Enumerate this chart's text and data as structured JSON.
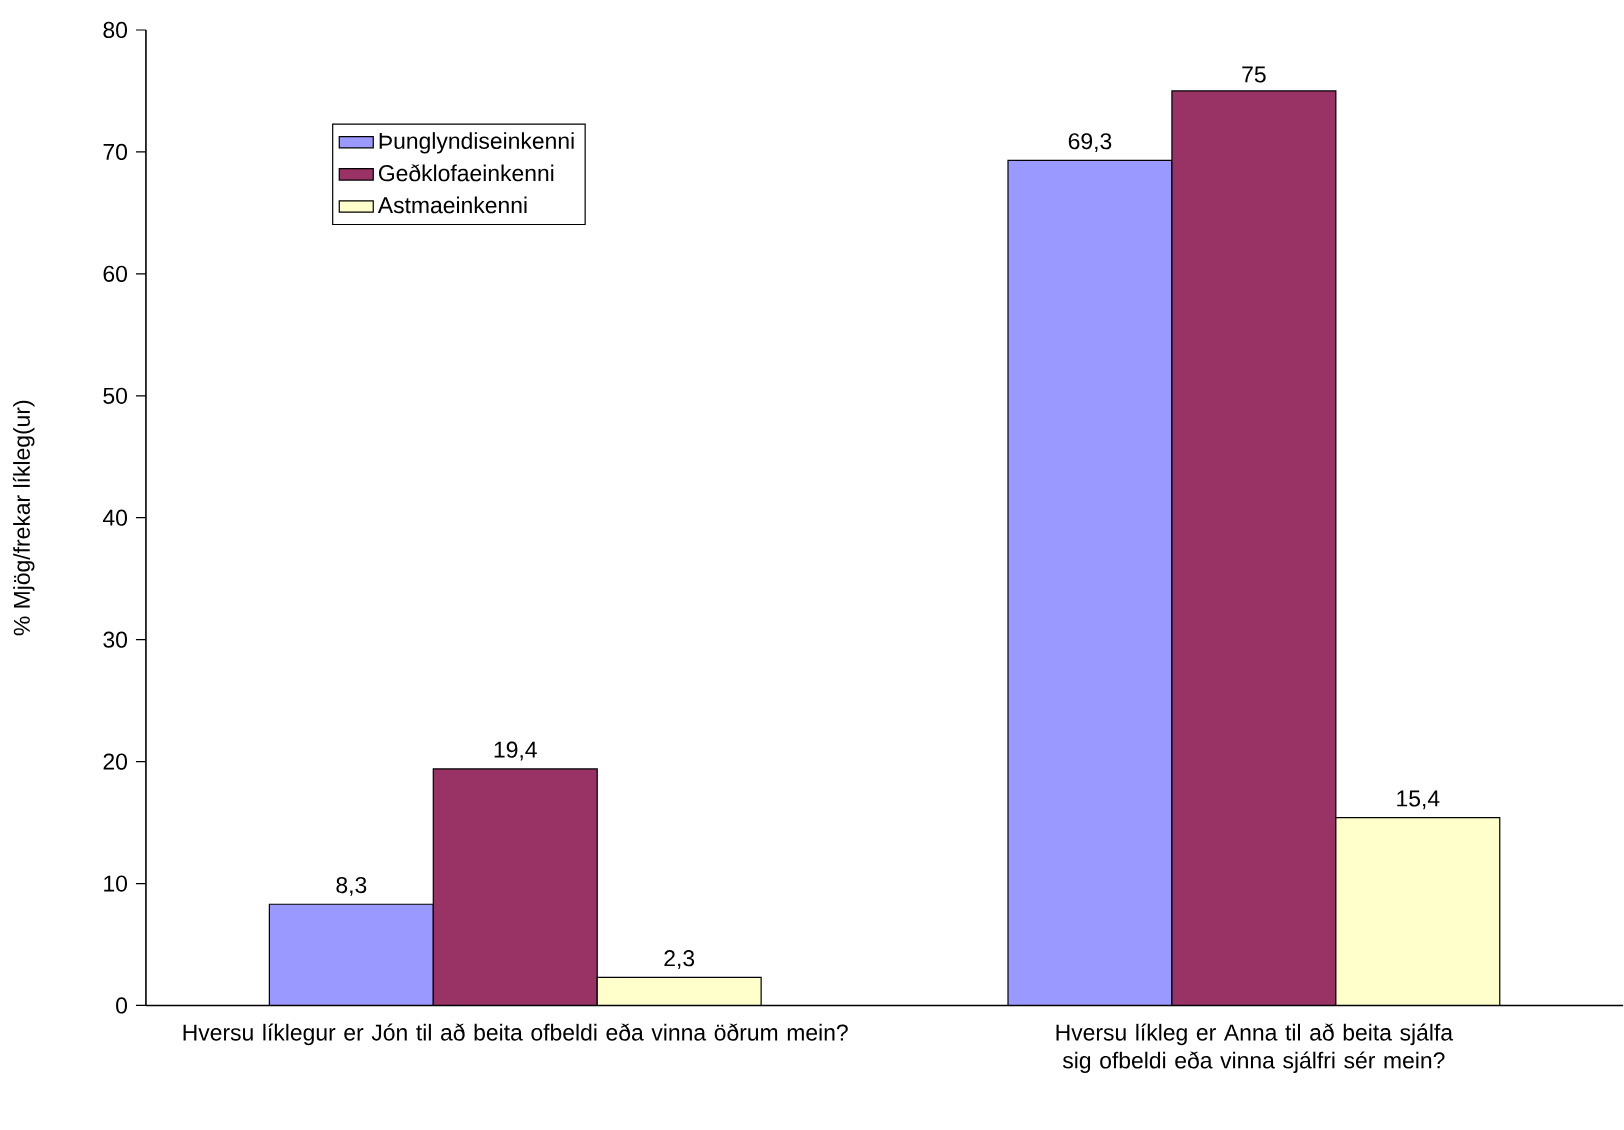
{
  "chart_data": {
    "type": "bar",
    "ylabel": "% Mjög/frekar líkleg(ur)",
    "categories": [
      "Hversu líklegur er Jón til að beita ofbeldi eða vinna öðrum mein?",
      "Hversu líkleg er Anna til að beita sjálfa sig ofbeldi eða vinna sjálfri sér mein?"
    ],
    "series": [
      {
        "name": "Þunglyndiseinkenni",
        "color": "#9999ff",
        "values": [
          8.3,
          69.3
        ],
        "value_labels": [
          "8,3",
          "69,3"
        ]
      },
      {
        "name": "Geðklofaeinkenni",
        "color": "#993366",
        "values": [
          19.4,
          75
        ],
        "value_labels": [
          "19,4",
          "75"
        ]
      },
      {
        "name": "Astmaeinkenni",
        "color": "#ffffcc",
        "values": [
          2.3,
          15.4
        ],
        "value_labels": [
          "2,3",
          "15,4"
        ]
      }
    ],
    "ylim": [
      0,
      80
    ],
    "yticks": [
      0,
      10,
      20,
      30,
      40,
      50,
      60,
      70,
      80
    ],
    "grid": false,
    "legend": "top left"
  }
}
